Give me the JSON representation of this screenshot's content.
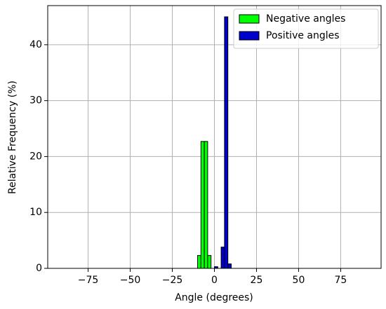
{
  "chart_data": {
    "type": "histogram",
    "xlabel": "Angle (degrees)",
    "ylabel": "Relative Frequency (%)",
    "bins": [
      -90,
      -88,
      -86,
      -84,
      -82,
      -80,
      -78,
      -76,
      -74,
      -72,
      -70,
      -68,
      -66,
      -64,
      -62,
      -60,
      -58,
      -56,
      -54,
      -52,
      -50,
      -48,
      -46,
      -44,
      -42,
      -40,
      -38,
      -36,
      -34,
      -32,
      -30,
      -28,
      -26,
      -24,
      -22,
      -20,
      -18,
      -16,
      -14,
      -12,
      -10,
      -8,
      -6,
      -4,
      -2,
      0,
      2,
      4,
      6,
      8,
      10,
      12,
      14,
      16,
      18,
      20,
      22,
      24,
      26,
      28,
      30,
      32,
      34,
      36,
      38,
      40,
      42,
      44,
      46,
      48,
      50,
      52,
      54,
      56,
      58,
      60,
      62,
      64,
      66,
      68,
      70,
      72,
      74,
      76,
      78,
      80,
      82,
      84,
      86,
      88,
      90
    ],
    "series": [
      {
        "name": "Negative angles",
        "color": "#00ff00",
        "values": [
          0,
          0,
          0,
          0,
          0,
          0,
          0,
          0,
          0,
          0,
          0,
          0,
          0,
          0,
          0,
          0,
          0,
          0,
          0,
          0,
          0,
          0,
          0,
          0,
          0,
          0,
          0,
          0,
          0,
          0,
          0,
          0,
          0,
          0,
          0,
          0,
          0,
          0,
          0,
          0,
          2.3,
          22.7,
          22.7,
          2.3,
          0,
          0,
          0,
          0,
          0,
          0,
          0,
          0,
          0,
          0,
          0,
          0,
          0,
          0,
          0,
          0,
          0,
          0,
          0,
          0,
          0,
          0,
          0,
          0,
          0,
          0,
          0,
          0,
          0,
          0,
          0,
          0,
          0,
          0,
          0,
          0,
          0,
          0,
          0,
          0,
          0,
          0,
          0,
          0,
          0,
          0
        ]
      },
      {
        "name": "Positive angles",
        "color": "#0000cc",
        "values": [
          0,
          0,
          0,
          0,
          0,
          0,
          0,
          0,
          0,
          0,
          0,
          0,
          0,
          0,
          0,
          0,
          0,
          0,
          0,
          0,
          0,
          0,
          0,
          0,
          0,
          0,
          0,
          0,
          0,
          0,
          0,
          0,
          0,
          0,
          0,
          0,
          0,
          0,
          0,
          0,
          0,
          0,
          0,
          0,
          0,
          0.3,
          0,
          3.8,
          45,
          0.8,
          0,
          0,
          0,
          0,
          0,
          0,
          0,
          0,
          0,
          0,
          0,
          0,
          0,
          0,
          0,
          0,
          0,
          0,
          0,
          0,
          0,
          0,
          0,
          0,
          0,
          0,
          0,
          0,
          0,
          0,
          0,
          0,
          0,
          0,
          0,
          0,
          0,
          0,
          0,
          0
        ]
      }
    ],
    "xlim": [
      -99,
      99
    ],
    "ylim": [
      0,
      47
    ],
    "xticks": [
      {
        "value": -75,
        "label": "−75"
      },
      {
        "value": -50,
        "label": "−50"
      },
      {
        "value": -25,
        "label": "−25"
      },
      0,
      25,
      50,
      75
    ],
    "yticks": [
      0,
      10,
      20,
      30,
      40
    ],
    "grid": true,
    "legend": "upper right"
  }
}
